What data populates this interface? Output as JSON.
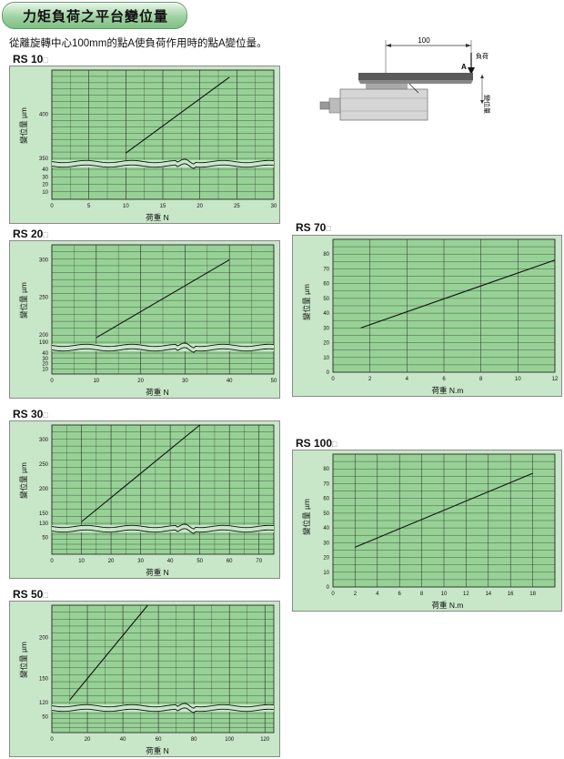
{
  "header": {
    "title": "力矩負荷之平台變位量"
  },
  "subtitle": "從離旋轉中心100mm的點A使負荷作用時的點A變位量。",
  "diagram": {
    "dim_value": "100",
    "load_label": "負荷",
    "point_label": "A",
    "disp_label": "變位量"
  },
  "chart_data": [
    {
      "id": "rs10",
      "type": "line",
      "model": "RS 10",
      "model_suffix": "□",
      "xlabel": "荷重  N",
      "ylabel": "變位量  µm",
      "xlim": [
        0,
        30
      ],
      "x_ticks": [
        "0",
        "5",
        "10",
        "15",
        "20",
        "25",
        "30"
      ],
      "y_upper_ticks": [
        "350",
        "400"
      ],
      "y_lower_ticks": [
        "10",
        "20",
        "30",
        "40"
      ],
      "y_upper_range": [
        350,
        450
      ],
      "y_lower_range": [
        0,
        40
      ],
      "series": [
        {
          "x": [
            10,
            24
          ],
          "y": [
            356,
            442
          ]
        }
      ]
    },
    {
      "id": "rs20",
      "type": "line",
      "model": "RS 20",
      "model_suffix": "□",
      "xlabel": "荷重  N",
      "ylabel": "變位量  µm",
      "xlim": [
        0,
        50
      ],
      "x_ticks": [
        "0",
        "10",
        "20",
        "30",
        "40",
        "50"
      ],
      "y_upper_ticks": [
        "190",
        "200",
        "250",
        "300"
      ],
      "y_lower_ticks": [
        "10",
        "20",
        "30",
        "40"
      ],
      "y_upper_range": [
        190,
        320
      ],
      "y_lower_range": [
        0,
        40
      ],
      "series": [
        {
          "x": [
            10,
            40
          ],
          "y": [
            196,
            300
          ]
        }
      ]
    },
    {
      "id": "rs30",
      "type": "line",
      "model": "RS 30",
      "model_suffix": "□",
      "xlabel": "荷重  N",
      "ylabel": "變位量  µm",
      "xlim": [
        0,
        75
      ],
      "x_ticks": [
        "0",
        "10",
        "20",
        "30",
        "40",
        "50",
        "60",
        "70"
      ],
      "y_upper_ticks": [
        "130",
        "150",
        "200",
        "250",
        "300"
      ],
      "y_lower_ticks": [
        "50"
      ],
      "y_upper_range": [
        130,
        330
      ],
      "y_lower_range": [
        0,
        60
      ],
      "series": [
        {
          "x": [
            10,
            50
          ],
          "y": [
            133,
            330
          ]
        }
      ]
    },
    {
      "id": "rs50",
      "type": "line",
      "model": "RS 50",
      "model_suffix": "□",
      "xlabel": "荷重  N",
      "ylabel": "變位量  µm",
      "xlim": [
        0,
        125
      ],
      "x_ticks": [
        "0",
        "20",
        "40",
        "60",
        "80",
        "100",
        "120"
      ],
      "y_upper_ticks": [
        "120",
        "150",
        "200"
      ],
      "y_lower_ticks": [
        "50"
      ],
      "y_upper_range": [
        120,
        240
      ],
      "y_lower_range": [
        0,
        60
      ],
      "series": [
        {
          "x": [
            10,
            54
          ],
          "y": [
            123,
            240
          ]
        }
      ]
    },
    {
      "id": "rs70",
      "type": "line",
      "model": "RS 70",
      "model_suffix": "□",
      "xlabel": "荷重  N.m",
      "ylabel": "變位量  µm",
      "xlim": [
        0,
        12
      ],
      "x_ticks": [
        "0",
        "2",
        "4",
        "6",
        "8",
        "10",
        "12"
      ],
      "ylim": [
        0,
        90
      ],
      "y_ticks": [
        "0",
        "10",
        "20",
        "30",
        "40",
        "50",
        "60",
        "70",
        "80"
      ],
      "series": [
        {
          "x": [
            1.5,
            12
          ],
          "y": [
            30,
            76
          ]
        }
      ]
    },
    {
      "id": "rs100",
      "type": "line",
      "model": "RS 100",
      "model_suffix": "□",
      "xlabel": "荷重  N.m",
      "ylabel": "變位量  µm",
      "xlim": [
        0,
        20
      ],
      "x_ticks": [
        "0",
        "2",
        "4",
        "6",
        "8",
        "10",
        "12",
        "14",
        "16",
        "18"
      ],
      "ylim": [
        0,
        90
      ],
      "y_ticks": [
        "0",
        "10",
        "20",
        "30",
        "40",
        "50",
        "60",
        "70",
        "80"
      ],
      "series": [
        {
          "x": [
            2,
            18
          ],
          "y": [
            27,
            77
          ]
        }
      ]
    }
  ]
}
